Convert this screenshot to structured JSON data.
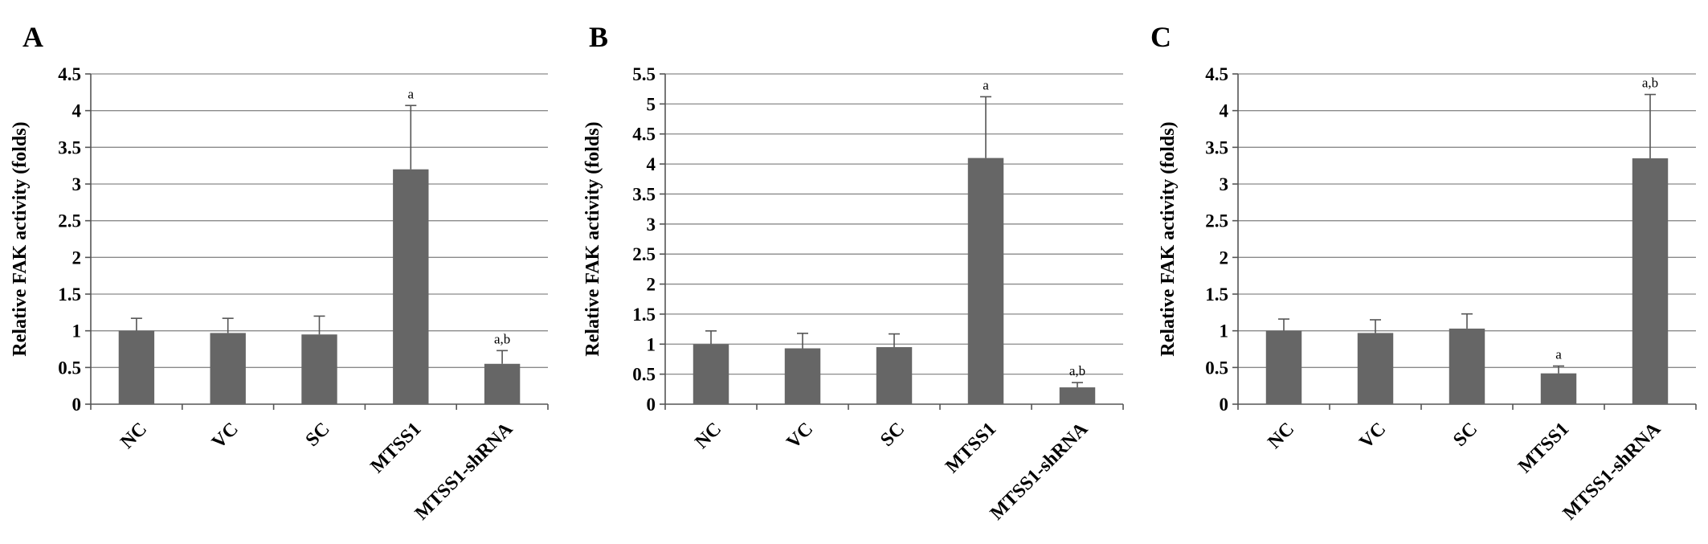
{
  "chart_data": [
    {
      "type": "bar",
      "panel": "A",
      "ylabel": "Relative FAK activity (folds)",
      "categories": [
        "NC",
        "VC",
        "SC",
        "MTSS1",
        "MTSS1-shRNA"
      ],
      "values": [
        1.0,
        0.97,
        0.95,
        3.2,
        0.55
      ],
      "errors": [
        0.17,
        0.2,
        0.25,
        0.87,
        0.18
      ],
      "annotations": [
        "",
        "",
        "",
        "a",
        "a,b"
      ],
      "ylim": [
        0,
        4.5
      ],
      "yticks": [
        "0",
        "0.5",
        "1",
        "1.5",
        "2",
        "2.5",
        "3",
        "3.5",
        "4",
        "4.5"
      ],
      "grid": true,
      "bar_color": "#666666"
    },
    {
      "type": "bar",
      "panel": "B",
      "ylabel": "Relative FAK activity (folds)",
      "categories": [
        "NC",
        "VC",
        "SC",
        "MTSS1",
        "MTSS1-shRNA"
      ],
      "values": [
        1.0,
        0.93,
        0.95,
        4.1,
        0.28
      ],
      "errors": [
        0.22,
        0.25,
        0.22,
        1.02,
        0.08
      ],
      "annotations": [
        "",
        "",
        "",
        "a",
        "a,b"
      ],
      "ylim": [
        0,
        5.5
      ],
      "yticks": [
        "0",
        "0.5",
        "1",
        "1.5",
        "2",
        "2.5",
        "3",
        "3.5",
        "4",
        "4.5",
        "5",
        "5.5"
      ],
      "grid": true,
      "bar_color": "#666666"
    },
    {
      "type": "bar",
      "panel": "C",
      "ylabel": "Relative FAK activity (folds)",
      "categories": [
        "NC",
        "VC",
        "SC",
        "MTSS1",
        "MTSS1-shRNA"
      ],
      "values": [
        1.0,
        0.97,
        1.03,
        0.42,
        3.35
      ],
      "errors": [
        0.16,
        0.18,
        0.2,
        0.1,
        0.87
      ],
      "annotations": [
        "",
        "",
        "",
        "a",
        "a,b"
      ],
      "ylim": [
        0,
        4.5
      ],
      "yticks": [
        "0",
        "0.5",
        "1",
        "1.5",
        "2",
        "2.5",
        "3",
        "3.5",
        "4",
        "4.5"
      ],
      "grid": true,
      "bar_color": "#666666"
    }
  ]
}
